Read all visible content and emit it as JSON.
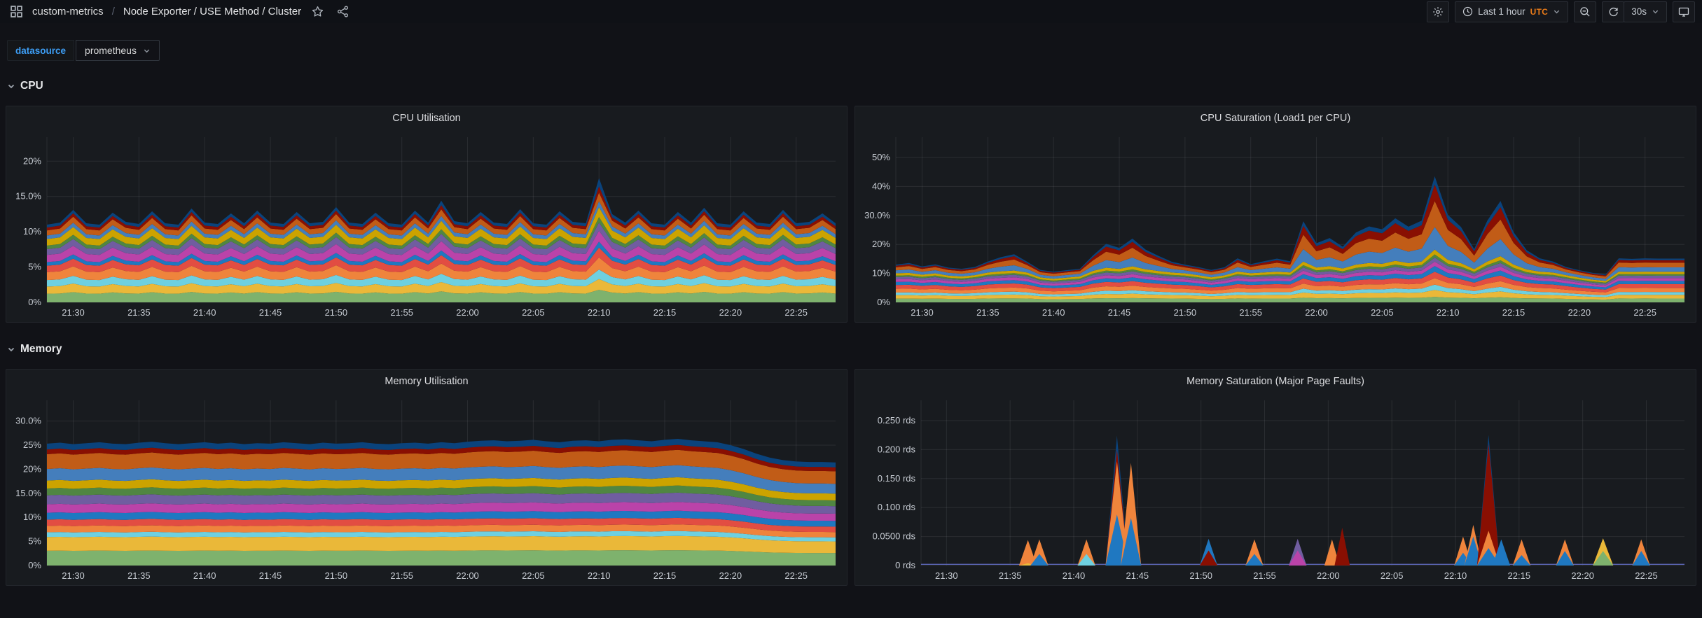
{
  "nav": {
    "breadcrumb_root": "custom-metrics",
    "separator": "/",
    "dashboard_title": "Node Exporter / USE Method / Cluster",
    "time_range_label": "Last 1 hour",
    "timezone": "UTC",
    "refresh_interval": "30s"
  },
  "variables": {
    "label": "datasource",
    "value": "prometheus"
  },
  "sections": [
    {
      "label": "CPU"
    },
    {
      "label": "Memory"
    }
  ],
  "palette": [
    "#7EB26D",
    "#EAB839",
    "#6ED0E0",
    "#EF843C",
    "#E24D42",
    "#1F78C1",
    "#BA43A9",
    "#705DA0",
    "#508642",
    "#CCA300",
    "#447EBC",
    "#C15C17",
    "#890F02",
    "#0A437C"
  ],
  "chart_data": [
    {
      "type": "area",
      "stacked": true,
      "legend_visible": false,
      "grid": true,
      "title": "CPU Utilisation",
      "unit": "%",
      "x_axis": {
        "labels": [
          "21:30",
          "21:35",
          "21:40",
          "21:45",
          "21:50",
          "21:55",
          "22:00",
          "22:05",
          "22:10",
          "22:15",
          "22:20",
          "22:25"
        ],
        "first_offset_min": 2,
        "step_min": 5,
        "range_min": 60,
        "start_time": "21:28"
      },
      "y_axis": {
        "max": 23.4,
        "ticks": [
          {
            "v": 0,
            "label": "0%"
          },
          {
            "v": 5,
            "label": "5%"
          },
          {
            "v": 10,
            "label": "10%"
          },
          {
            "v": 15,
            "label": "15.0%"
          },
          {
            "v": 20,
            "label": "20%"
          }
        ]
      },
      "series_colors": [
        "#7EB26D",
        "#EAB839",
        "#6ED0E0",
        "#EF843C",
        "#E24D42",
        "#1F78C1",
        "#BA43A9",
        "#705DA0",
        "#508642",
        "#CCA300",
        "#447EBC",
        "#C15C17",
        "#890F02",
        "#0A437C"
      ],
      "totals": [
        11.0,
        11.3,
        13.1,
        11.2,
        11.0,
        12.7,
        11.4,
        11.1,
        12.9,
        11.2,
        11.0,
        13.3,
        11.3,
        11.1,
        12.6,
        11.2,
        13.0,
        11.3,
        11.1,
        12.8,
        11.2,
        11.4,
        13.5,
        11.3,
        11.1,
        12.7,
        11.2,
        11.0,
        13.0,
        11.3,
        14.4,
        11.5,
        11.2,
        12.8,
        11.3,
        11.1,
        13.2,
        11.2,
        11.0,
        12.9,
        11.4,
        11.2,
        17.6,
        12.5,
        11.3,
        13.0,
        11.2,
        11.0,
        12.8,
        11.3,
        13.4,
        11.2,
        11.0,
        12.9,
        11.3,
        11.1,
        13.1,
        11.2,
        11.4,
        12.6,
        11.2
      ],
      "base_level": 13.5,
      "weights_base": [
        1.2,
        1.0,
        0.9,
        1.1,
        0.9,
        0.5,
        1.0,
        0.8,
        0.5,
        0.9,
        0.5,
        0.7,
        0.4,
        0.4
      ],
      "weights_peak": [
        0.5,
        0.5,
        0.4,
        0.6,
        0.5,
        0.4,
        0.5,
        0.3,
        0.3,
        0.5,
        0.4,
        0.6,
        0.7,
        1.2
      ]
    },
    {
      "type": "area",
      "stacked": true,
      "legend_visible": false,
      "grid": true,
      "title": "CPU Saturation (Load1 per CPU)",
      "unit": "%",
      "x_axis": {
        "labels": [
          "21:30",
          "21:35",
          "21:40",
          "21:45",
          "21:50",
          "21:55",
          "22:00",
          "22:05",
          "22:10",
          "22:15",
          "22:20",
          "22:25"
        ],
        "first_offset_min": 2,
        "step_min": 5,
        "range_min": 60,
        "start_time": "21:28"
      },
      "y_axis": {
        "max": 57,
        "ticks": [
          {
            "v": 0,
            "label": "0%"
          },
          {
            "v": 10,
            "label": "10%"
          },
          {
            "v": 20,
            "label": "20%"
          },
          {
            "v": 30,
            "label": "30.0%"
          },
          {
            "v": 40,
            "label": "40%"
          },
          {
            "v": 50,
            "label": "50%"
          }
        ]
      },
      "series_colors": [
        "#7EB26D",
        "#EAB839",
        "#6ED0E0",
        "#EF843C",
        "#E24D42",
        "#1F78C1",
        "#BA43A9",
        "#705DA0",
        "#508642",
        "#CCA300",
        "#447EBC",
        "#C15C17",
        "#890F02",
        "#0A437C"
      ],
      "totals": [
        13.0,
        13.6,
        12.4,
        13.1,
        12.0,
        11.6,
        12.2,
        14.1,
        15.6,
        16.6,
        14.0,
        11.2,
        10.6,
        11.1,
        11.6,
        16.2,
        20.2,
        18.8,
        22.0,
        18.2,
        16.0,
        14.0,
        13.0,
        12.2,
        11.2,
        12.1,
        15.2,
        13.2,
        14.2,
        15.1,
        14.2,
        28.0,
        20.4,
        22.2,
        19.2,
        24.1,
        26.2,
        25.2,
        29.0,
        26.1,
        28.2,
        43.5,
        30.2,
        26.0,
        18.4,
        28.2,
        35.0,
        24.2,
        18.0,
        15.2,
        14.1,
        12.2,
        11.1,
        10.2,
        9.6,
        15.2,
        15.0,
        15.2,
        15.1,
        15.1,
        15.1
      ],
      "base_level": 13,
      "weights_base": [
        1.0,
        0.9,
        0.7,
        1.0,
        1.0,
        0.8,
        0.7,
        0.6,
        0.4,
        0.6,
        0.8,
        0.8,
        0.4,
        0.3
      ],
      "weights_peak": [
        0.2,
        0.4,
        0.3,
        0.3,
        0.3,
        0.3,
        0.2,
        0.2,
        0.2,
        0.3,
        2.2,
        2.6,
        1.7,
        0.8
      ]
    },
    {
      "type": "area",
      "stacked": true,
      "legend_visible": false,
      "grid": true,
      "title": "Memory Utilisation",
      "unit": "%",
      "x_axis": {
        "labels": [
          "21:30",
          "21:35",
          "21:40",
          "21:45",
          "21:50",
          "21:55",
          "22:00",
          "22:05",
          "22:10",
          "22:15",
          "22:20",
          "22:25"
        ],
        "first_offset_min": 2,
        "step_min": 5,
        "range_min": 60,
        "start_time": "21:28"
      },
      "y_axis": {
        "max": 34.3,
        "ticks": [
          {
            "v": 0,
            "label": "0%"
          },
          {
            "v": 5,
            "label": "5%"
          },
          {
            "v": 10,
            "label": "10%"
          },
          {
            "v": 15,
            "label": "15.0%"
          },
          {
            "v": 20,
            "label": "20%"
          },
          {
            "v": 25,
            "label": "25%"
          },
          {
            "v": 30,
            "label": "30.0%"
          }
        ]
      },
      "series_colors": [
        "#7EB26D",
        "#EAB839",
        "#6ED0E0",
        "#EF843C",
        "#E24D42",
        "#1F78C1",
        "#BA43A9",
        "#705DA0",
        "#508642",
        "#CCA300",
        "#447EBC",
        "#C15C17",
        "#890F02",
        "#0A437C"
      ],
      "totals": [
        25.3,
        25.5,
        25.2,
        25.4,
        25.6,
        25.3,
        25.2,
        25.5,
        25.7,
        25.4,
        25.2,
        25.4,
        25.6,
        25.3,
        25.5,
        25.2,
        25.4,
        25.3,
        25.6,
        25.4,
        25.2,
        25.5,
        25.3,
        25.4,
        25.6,
        25.3,
        25.2,
        25.4,
        25.5,
        25.3,
        25.6,
        25.4,
        25.7,
        25.9,
        26.0,
        25.8,
        25.9,
        26.1,
        25.8,
        25.6,
        25.9,
        26.0,
        25.8,
        26.1,
        26.2,
        26.0,
        25.8,
        26.1,
        26.3,
        26.0,
        25.8,
        25.6,
        25.0,
        24.2,
        23.2,
        22.4,
        21.9,
        21.6,
        21.5,
        21.5,
        21.4
      ],
      "base_level": 100,
      "weights_base": [
        2.8,
        2.6,
        0.9,
        1.2,
        1.2,
        1.3,
        1.6,
        1.7,
        1.3,
        1.5,
        2.2,
        2.8,
        0.9,
        1.1
      ],
      "weights_peak": [
        2.8,
        2.6,
        0.9,
        1.2,
        1.2,
        1.3,
        1.6,
        1.7,
        1.3,
        1.5,
        2.2,
        2.8,
        0.9,
        1.1
      ]
    },
    {
      "type": "area-spikes",
      "stacked": true,
      "legend_visible": false,
      "grid": true,
      "title": "Memory Saturation (Major Page Faults)",
      "unit": "rds",
      "x_axis": {
        "labels": [
          "21:30",
          "21:35",
          "21:40",
          "21:45",
          "21:50",
          "21:55",
          "22:00",
          "22:05",
          "22:10",
          "22:15",
          "22:20",
          "22:25"
        ],
        "first_offset_min": 2,
        "step_min": 5,
        "range_min": 60,
        "start_time": "21:28"
      },
      "y_axis": {
        "max": 0.285,
        "ticks": [
          {
            "v": 0,
            "label": "0 rds"
          },
          {
            "v": 0.05,
            "label": "0.0500 rds"
          },
          {
            "v": 0.1,
            "label": "0.100 rds"
          },
          {
            "v": 0.15,
            "label": "0.150 rds"
          },
          {
            "v": 0.2,
            "label": "0.200 rds"
          },
          {
            "v": 0.25,
            "label": "0.250 rds"
          }
        ]
      },
      "baseline": 0.002,
      "spikes": [
        {
          "t": 8.4,
          "w": 0.7,
          "layers": [
            [
              "#EAB839",
              0.004
            ],
            [
              "#EF843C",
              0.04
            ]
          ]
        },
        {
          "t": 9.3,
          "w": 0.7,
          "layers": [
            [
              "#1F78C1",
              0.02
            ],
            [
              "#EF843C",
              0.025
            ]
          ]
        },
        {
          "t": 13.0,
          "w": 0.7,
          "layers": [
            [
              "#6ED0E0",
              0.02
            ],
            [
              "#EF843C",
              0.025
            ]
          ]
        },
        {
          "t": 15.4,
          "w": 0.9,
          "layers": [
            [
              "#1F78C1",
              0.088
            ],
            [
              "#EF843C",
              0.092
            ],
            [
              "#890F02",
              0.02
            ],
            [
              "#0A437C",
              0.024
            ]
          ]
        },
        {
          "t": 16.5,
          "w": 0.8,
          "layers": [
            [
              "#1F78C1",
              0.082
            ],
            [
              "#EF843C",
              0.095
            ]
          ]
        },
        {
          "t": 22.6,
          "w": 0.7,
          "layers": [
            [
              "#890F02",
              0.026
            ],
            [
              "#1F78C1",
              0.02
            ]
          ]
        },
        {
          "t": 26.2,
          "w": 0.7,
          "layers": [
            [
              "#1F78C1",
              0.02
            ],
            [
              "#EF843C",
              0.025
            ]
          ]
        },
        {
          "t": 29.6,
          "w": 0.7,
          "layers": [
            [
              "#BA43A9",
              0.026
            ],
            [
              "#705DA0",
              0.02
            ]
          ]
        },
        {
          "t": 32.3,
          "w": 0.6,
          "layers": [
            [
              "#EF843C",
              0.045
            ]
          ]
        },
        {
          "t": 33.1,
          "w": 0.6,
          "layers": [
            [
              "#890F02",
              0.065
            ]
          ]
        },
        {
          "t": 42.6,
          "w": 0.7,
          "layers": [
            [
              "#1F78C1",
              0.022
            ],
            [
              "#EF843C",
              0.028
            ]
          ]
        },
        {
          "t": 43.4,
          "w": 0.7,
          "layers": [
            [
              "#1F78C1",
              0.05
            ],
            [
              "#EF843C",
              0.02
            ]
          ]
        },
        {
          "t": 44.6,
          "w": 0.9,
          "layers": [
            [
              "#1F78C1",
              0.03
            ],
            [
              "#EF843C",
              0.03
            ],
            [
              "#890F02",
              0.15
            ],
            [
              "#0A437C",
              0.015
            ]
          ]
        },
        {
          "t": 45.6,
          "w": 0.7,
          "layers": [
            [
              "#1F78C1",
              0.045
            ]
          ]
        },
        {
          "t": 47.2,
          "w": 0.7,
          "layers": [
            [
              "#1F78C1",
              0.018
            ],
            [
              "#EF843C",
              0.027
            ]
          ]
        },
        {
          "t": 50.6,
          "w": 0.7,
          "layers": [
            [
              "#1F78C1",
              0.025
            ],
            [
              "#EF843C",
              0.02
            ]
          ]
        },
        {
          "t": 53.6,
          "w": 0.8,
          "layers": [
            [
              "#7EB26D",
              0.025
            ],
            [
              "#EAB839",
              0.022
            ]
          ]
        },
        {
          "t": 56.6,
          "w": 0.7,
          "layers": [
            [
              "#1F78C1",
              0.025
            ],
            [
              "#EF843C",
              0.02
            ]
          ]
        }
      ]
    }
  ]
}
